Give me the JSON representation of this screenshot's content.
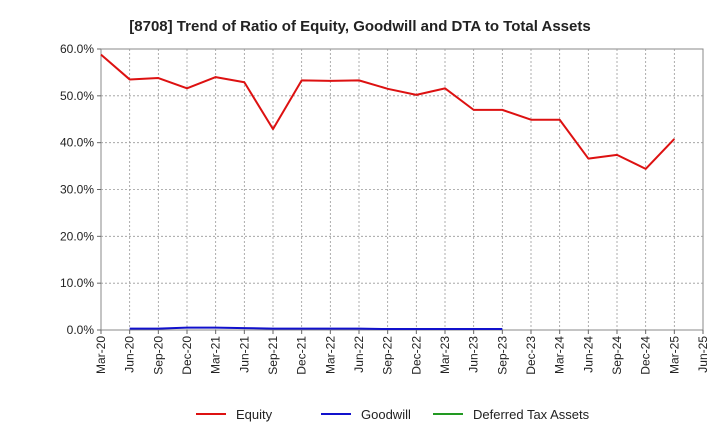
{
  "chart_data": {
    "type": "line",
    "title": "[8708]  Trend of Ratio of Equity, Goodwill and DTA to Total Assets",
    "xlabel": "",
    "ylabel": "",
    "y_tick_labels": [
      "0.0%",
      "10.0%",
      "20.0%",
      "30.0%",
      "40.0%",
      "50.0%",
      "60.0%"
    ],
    "ylim": [
      0,
      60
    ],
    "categories": [
      "Mar-20",
      "Jun-20",
      "Sep-20",
      "Dec-20",
      "Mar-21",
      "Jun-21",
      "Sep-21",
      "Dec-21",
      "Mar-22",
      "Jun-22",
      "Sep-22",
      "Dec-22",
      "Mar-23",
      "Jun-23",
      "Sep-23",
      "Dec-23",
      "Mar-24",
      "Jun-24",
      "Sep-24",
      "Dec-24",
      "Mar-25",
      "Jun-25"
    ],
    "grid": true,
    "legend_position": "bottom",
    "series": [
      {
        "name": "Equity",
        "color": "#dd1111",
        "values": [
          58.8,
          53.5,
          53.8,
          51.6,
          54.0,
          52.9,
          42.9,
          53.3,
          53.2,
          53.3,
          51.5,
          50.2,
          51.6,
          47.0,
          47.0,
          44.9,
          44.9,
          36.6,
          37.4,
          34.4,
          40.8,
          null
        ]
      },
      {
        "name": "Goodwill",
        "color": "#1111cc",
        "values": [
          null,
          0.3,
          0.3,
          0.5,
          0.5,
          0.4,
          0.3,
          0.3,
          0.3,
          0.3,
          0.2,
          0.2,
          0.2,
          0.2,
          0.2,
          null,
          null,
          null,
          null,
          null,
          null,
          null
        ]
      },
      {
        "name": "Deferred Tax Assets",
        "color": "#229922",
        "values": [
          null,
          null,
          null,
          null,
          null,
          null,
          null,
          null,
          null,
          null,
          null,
          null,
          null,
          null,
          null,
          null,
          null,
          null,
          null,
          null,
          null,
          null
        ]
      }
    ]
  }
}
